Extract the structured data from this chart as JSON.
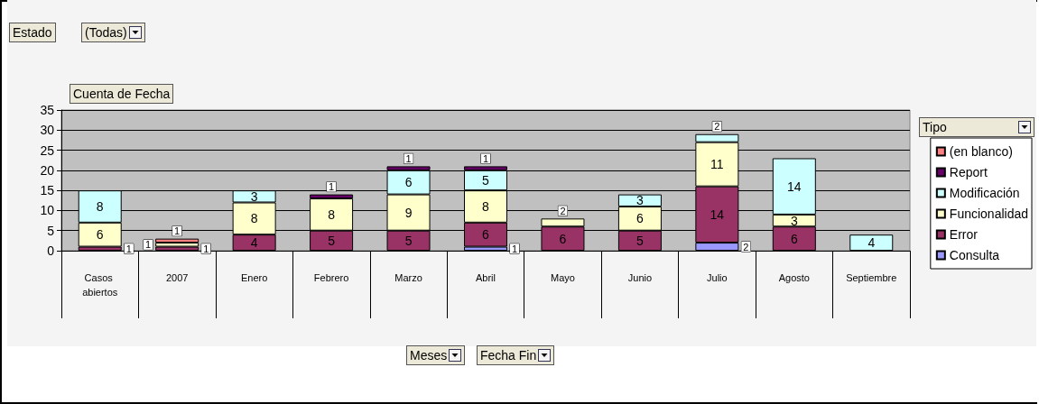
{
  "chart_data": {
    "type": "bar",
    "stacked": true,
    "ylabel": "Cuenta de Fecha",
    "legend_title": "Tipo",
    "annotations": [
      "Estado",
      "(Todas)",
      "Meses",
      "Fecha Fin"
    ],
    "categories": [
      "Casos abiertos",
      "2007",
      "Enero",
      "Febrero",
      "Marzo",
      "Abril",
      "Mayo",
      "Junio",
      "Julio",
      "Agosto",
      "Septiembre"
    ],
    "series": [
      {
        "name": "Consulta",
        "color": "#9999ff",
        "values": [
          null,
          null,
          null,
          null,
          null,
          1,
          null,
          null,
          2,
          null,
          null
        ]
      },
      {
        "name": "Error",
        "color": "#993366",
        "values": [
          1,
          1,
          4,
          5,
          5,
          6,
          6,
          5,
          14,
          6,
          null
        ]
      },
      {
        "name": "Funcionalidad",
        "color": "#ffffcc",
        "values": [
          6,
          1,
          8,
          8,
          9,
          8,
          2,
          6,
          11,
          3,
          null
        ]
      },
      {
        "name": "Modificación",
        "color": "#ccffff",
        "values": [
          8,
          null,
          3,
          null,
          6,
          5,
          null,
          3,
          2,
          14,
          4
        ]
      },
      {
        "name": "Report",
        "color": "#660066",
        "values": [
          null,
          null,
          null,
          1,
          1,
          1,
          null,
          null,
          null,
          null,
          null
        ]
      },
      {
        "name": "(en blanco)",
        "color": "#ff8080",
        "values": [
          null,
          1,
          null,
          null,
          null,
          null,
          null,
          null,
          null,
          null,
          null
        ]
      }
    ],
    "ylim": [
      0,
      35
    ],
    "yticks": [
      0,
      5,
      10,
      15,
      20,
      25,
      30,
      35
    ],
    "grid": "y",
    "legend": "right",
    "data_labels": true
  }
}
